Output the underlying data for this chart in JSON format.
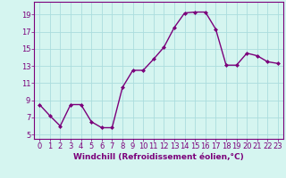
{
  "x": [
    0,
    1,
    2,
    3,
    4,
    5,
    6,
    7,
    8,
    9,
    10,
    11,
    12,
    13,
    14,
    15,
    16,
    17,
    18,
    19,
    20,
    21,
    22,
    23
  ],
  "y": [
    8.5,
    7.2,
    6.0,
    8.5,
    8.5,
    6.5,
    5.8,
    5.8,
    10.5,
    12.5,
    12.5,
    13.8,
    15.2,
    17.5,
    19.2,
    19.3,
    19.3,
    17.3,
    13.1,
    13.1,
    14.5,
    14.2,
    13.5,
    13.3
  ],
  "line_color": "#7b007b",
  "marker": "D",
  "marker_size": 2.0,
  "background_color": "#d5f5f0",
  "grid_color": "#aadddd",
  "xlabel": "Windchill (Refroidissement éolien,°C)",
  "xlabel_fontsize": 6.5,
  "tick_fontsize": 6.0,
  "xlim": [
    -0.5,
    23.5
  ],
  "ylim": [
    4.5,
    20.5
  ],
  "yticks": [
    5,
    7,
    9,
    11,
    13,
    15,
    17,
    19
  ],
  "xticks": [
    0,
    1,
    2,
    3,
    4,
    5,
    6,
    7,
    8,
    9,
    10,
    11,
    12,
    13,
    14,
    15,
    16,
    17,
    18,
    19,
    20,
    21,
    22,
    23
  ]
}
